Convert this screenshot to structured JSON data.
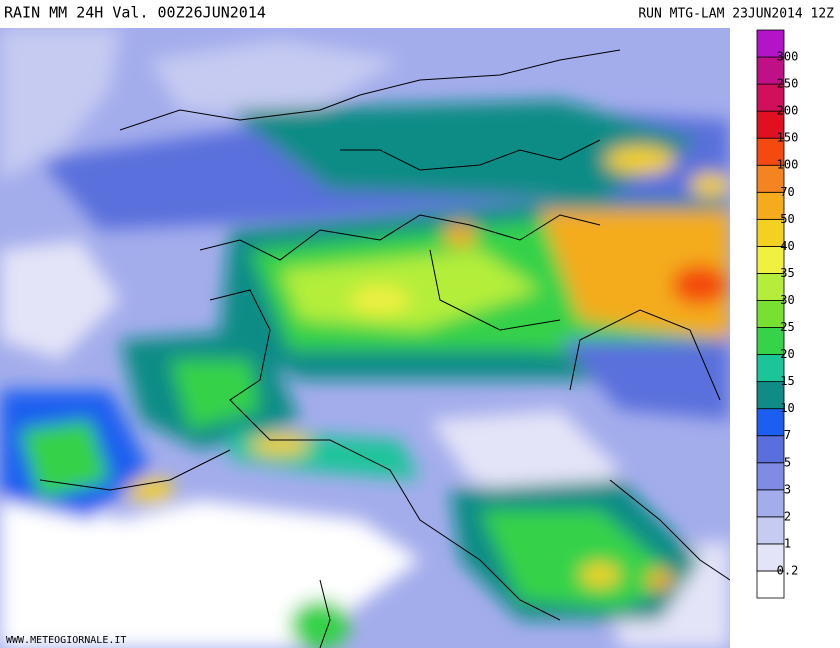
{
  "header": {
    "title": "RAIN  MM  24H  Val. 00Z26JUN2014",
    "run": "RUN  MTG-LAM  23JUN2014  12Z"
  },
  "legend": {
    "levels": [
      0.2,
      1,
      2,
      3,
      5,
      7,
      10,
      15,
      20,
      25,
      30,
      35,
      40,
      50,
      70,
      100,
      150,
      200,
      250,
      300
    ],
    "colors": [
      "#ffffff",
      "#e4e4f8",
      "#c6cbf2",
      "#a4adec",
      "#7e8ce4",
      "#5a6fdc",
      "#1c5ff0",
      "#0f8c86",
      "#1cc49a",
      "#36d24a",
      "#78e030",
      "#b4ee3a",
      "#f0f040",
      "#f4d020",
      "#f4ac1c",
      "#f48420",
      "#f44a10",
      "#e01020",
      "#d0105a",
      "#c01088",
      "#b414c8"
    ]
  },
  "footer": {
    "credit": "WWW.METEOGIORNALE.IT"
  }
}
